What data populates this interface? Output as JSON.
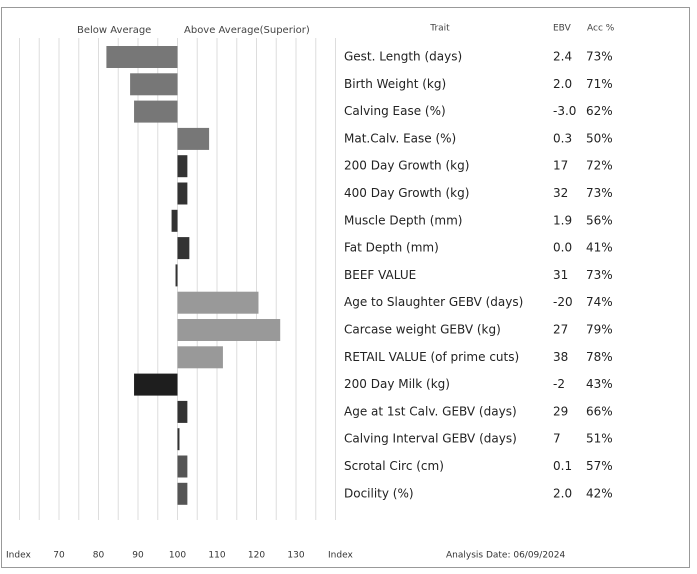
{
  "chart_data": {
    "type": "bar",
    "header_left": "Below Average",
    "header_right": "Above Average(Superior)",
    "column_headers": [
      "Trait",
      "EBV",
      "Acc %"
    ],
    "categories": [
      "Gest. Length (days)",
      "Birth Weight (kg)",
      "Calving Ease (%)",
      "Mat.Calv. Ease (%)",
      "200 Day Growth (kg)",
      "400 Day Growth (kg)",
      "Muscle Depth (mm)",
      "Fat Depth (mm)",
      "BEEF VALUE",
      "Age to Slaughter GEBV (days)",
      "Carcase weight GEBV (kg)",
      "RETAIL VALUE (of prime cuts)",
      "200 Day Milk (kg)",
      "Age at 1st Calv. GEBV (days)",
      "Calving Interval GEBV (days)",
      "Scrotal Circ (cm)",
      "Docility (%)"
    ],
    "values": [
      82,
      88,
      89,
      108,
      102.5,
      102.5,
      98.5,
      103,
      99.5,
      120.5,
      126,
      111.5,
      89,
      102.5,
      100.5,
      102.5,
      102.5
    ],
    "colors": [
      "#777777",
      "#777777",
      "#777777",
      "#777777",
      "#333333",
      "#333333",
      "#333333",
      "#333333",
      "#333333",
      "#999999",
      "#999999",
      "#999999",
      "#1e1e1e",
      "#333333",
      "#333333",
      "#555555",
      "#555555"
    ],
    "ebv": [
      "2.4",
      "2.0",
      "-3.0",
      "0.3",
      "17",
      "32",
      "1.9",
      "0.0",
      "31",
      "-20",
      "27",
      "38",
      "-2",
      "29",
      "7",
      "0.1",
      "2.0"
    ],
    "acc": [
      "73%",
      "71%",
      "62%",
      "50%",
      "72%",
      "73%",
      "56%",
      "41%",
      "73%",
      "74%",
      "79%",
      "78%",
      "43%",
      "66%",
      "51%",
      "57%",
      "42%"
    ],
    "xlim": [
      60,
      140
    ],
    "xticks": [
      70,
      80,
      90,
      100,
      110,
      120,
      130
    ],
    "xgrid": [
      60,
      65,
      70,
      75,
      80,
      85,
      90,
      95,
      100,
      105,
      110,
      115,
      120,
      125,
      130,
      135,
      140
    ],
    "baseline": 100,
    "axis_label": "Index",
    "analysis_date": "Analysis Date: 06/09/2024"
  }
}
